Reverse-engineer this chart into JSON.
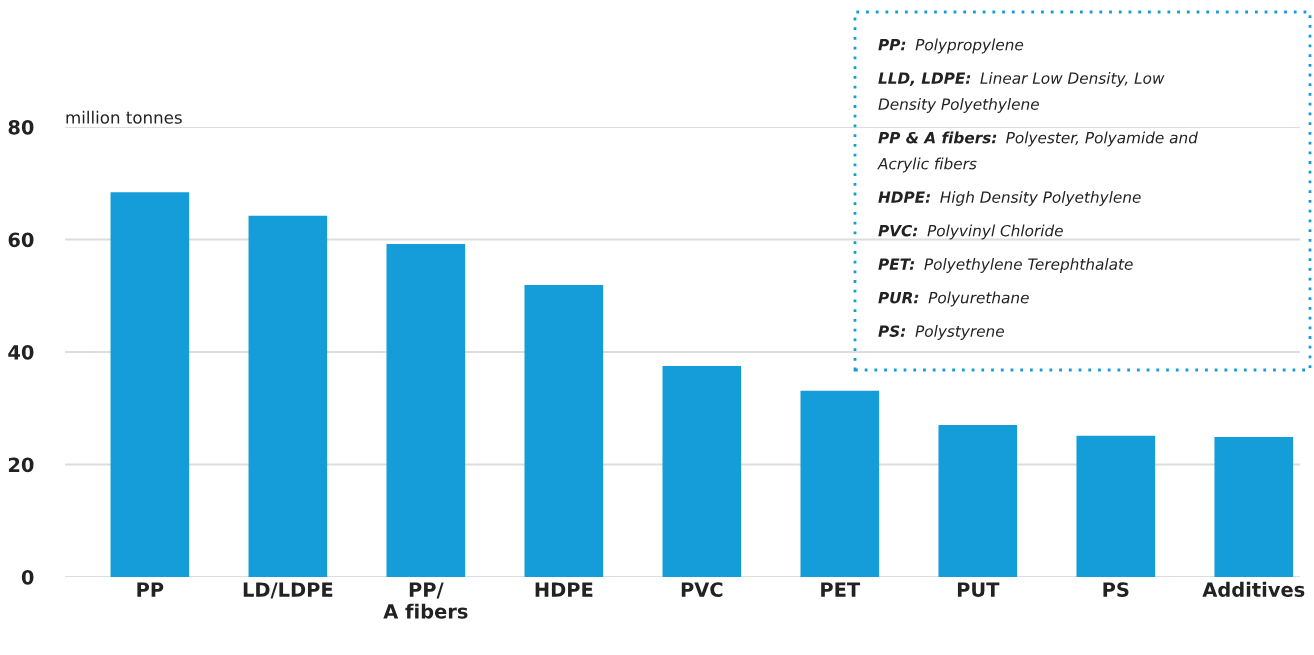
{
  "chart_data": {
    "type": "bar",
    "ylabel": "million tonnes",
    "categories": [
      "PP",
      "LD/LDPE",
      "PP/\nA fibers",
      "HDPE",
      "PVC",
      "PET",
      "PUT",
      "PS",
      "Additives"
    ],
    "values": [
      68.4,
      64.2,
      59.2,
      51.9,
      37.5,
      33.1,
      27.0,
      25.1,
      24.9
    ],
    "color": "#159dd9",
    "ylim": [
      0,
      80
    ],
    "yticks": [
      0,
      20,
      40,
      60,
      80
    ],
    "grid": "y",
    "legend": false,
    "annotations": [
      "PP: Polypropylene",
      "LLD, LDPE: Linear Low Density, Low\nDensity Polyethylene",
      "PP & A fibers: Polyester, Polyamide and\nAcrylic fibers",
      "HDPE: High Density Polyethylene",
      "PVC: Polyvinyl Chloride",
      "PET: Polyethylene Terephthalate",
      "PUR: Polyurethane",
      "PS: Polystyrene"
    ]
  }
}
